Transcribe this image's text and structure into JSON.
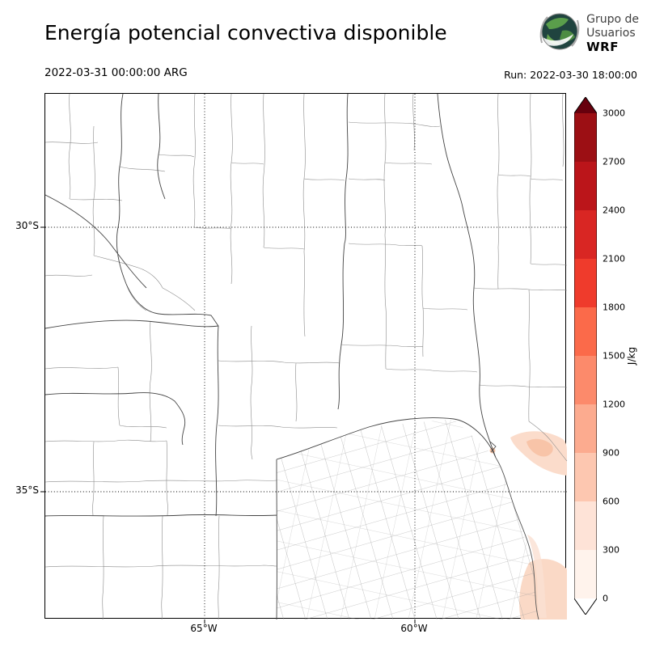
{
  "header": {
    "title": "Energía potencial convectiva disponible",
    "valid_time": "2022-03-31 00:00:00 ARG",
    "run_label": "Run: 2022-03-30 18:00:00",
    "logo": {
      "line1": "Grupo de",
      "line2": "Usuarios",
      "line3": "WRF"
    }
  },
  "map": {
    "lat_tick_labels": [
      "30°S",
      "35°S"
    ],
    "lon_tick_labels": [
      "65°W",
      "60°W"
    ]
  },
  "colorbar": {
    "unit": "J/kg",
    "tick_labels": [
      "3000",
      "2700",
      "2400",
      "2100",
      "1800",
      "1500",
      "1200",
      "900",
      "600",
      "300",
      "0"
    ],
    "colors_top_to_bottom": [
      "#67000d",
      "#9c0f14",
      "#bb151a",
      "#d92623",
      "#ef3b2c",
      "#fb6a4a",
      "#fc8a6b",
      "#fcab8f",
      "#fdc7b0",
      "#fee3d7",
      "#fff3ec",
      "#ffffff"
    ]
  },
  "chart_data": {
    "type": "heatmap",
    "title": "Energía potencial convectiva disponible",
    "variable": "CAPE (convective available potential energy)",
    "units": "J/kg",
    "valid_time": "2022-03-31 00:00:00 ARG",
    "run": "2022-03-30 18:00:00",
    "colormap": "Reds",
    "colorbar_ticks": [
      0,
      300,
      600,
      900,
      1200,
      1500,
      1800,
      2100,
      2400,
      2700,
      3000
    ],
    "colorbar_range": [
      0,
      3000
    ],
    "lat_gridlines_deg_S": [
      30,
      35
    ],
    "lon_gridlines_deg_W": [
      65,
      60
    ],
    "grid_style": "dotted",
    "observed_field": "CAPE near 0 J/kg over almost the entire land domain (central Argentina); pale patches of roughly 100-300 J/kg offshore over the Río de la Plata and near the southeastern coastal corner of the domain"
  }
}
